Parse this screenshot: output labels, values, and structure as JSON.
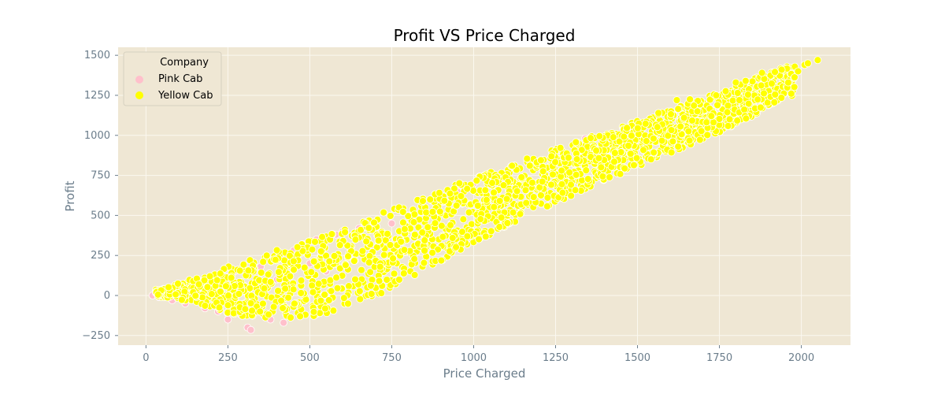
{
  "chart_data": {
    "type": "scatter",
    "title": "Profit VS Price Charged",
    "xlabel": "Price Charged",
    "ylabel": "Profit",
    "xlim": [
      -85,
      2150
    ],
    "ylim": [
      -310,
      1550
    ],
    "xticks": [
      0,
      250,
      500,
      750,
      1000,
      1250,
      1500,
      1750,
      2000
    ],
    "yticks": [
      -250,
      0,
      250,
      500,
      750,
      1000,
      1250,
      1500
    ],
    "grid": true,
    "legend": {
      "title": "Company",
      "placement": "top-left",
      "entries": [
        "Pink Cab",
        "Yellow Cab"
      ]
    },
    "colors": {
      "plot_background": "#efe7d4",
      "grid": "#fbf8f0",
      "pink": "#ffc0cb",
      "yellow": "#ffff00",
      "marker_edge": "#ffffff"
    },
    "series": [
      {
        "name": "Pink Cab",
        "color": "#ffc0cb",
        "x": [
          20,
          40,
          60,
          80,
          100,
          120,
          150,
          180,
          200,
          220,
          240,
          250,
          270,
          290,
          300,
          310,
          320,
          350,
          380,
          400,
          420,
          430,
          450,
          480,
          500,
          520,
          550,
          580,
          600,
          620,
          650,
          700,
          750,
          800,
          850,
          900,
          950,
          1000,
          1100,
          1200,
          1340
        ],
        "y": [
          0,
          -10,
          20,
          -30,
          30,
          -50,
          60,
          -80,
          80,
          -100,
          120,
          -150,
          150,
          -120,
          60,
          -200,
          -215,
          180,
          -150,
          100,
          -170,
          250,
          280,
          320,
          200,
          350,
          150,
          380,
          400,
          250,
          420,
          300,
          450,
          500,
          550,
          620,
          650,
          700,
          750,
          800,
          980
        ]
      },
      {
        "name": "Yellow Cab",
        "color": "#ffff00",
        "bands": [
          {
            "x": 50,
            "lo": -10,
            "hi": 40
          },
          {
            "x": 150,
            "lo": -50,
            "hi": 120
          },
          {
            "x": 250,
            "lo": -110,
            "hi": 180
          },
          {
            "x": 350,
            "lo": -150,
            "hi": 250
          },
          {
            "x": 450,
            "lo": -150,
            "hi": 320
          },
          {
            "x": 550,
            "lo": -120,
            "hi": 390
          },
          {
            "x": 650,
            "lo": -40,
            "hi": 460
          },
          {
            "x": 750,
            "lo": 40,
            "hi": 540
          },
          {
            "x": 850,
            "lo": 150,
            "hi": 620
          },
          {
            "x": 950,
            "lo": 270,
            "hi": 700
          },
          {
            "x": 1050,
            "lo": 380,
            "hi": 770
          },
          {
            "x": 1150,
            "lo": 480,
            "hi": 850
          },
          {
            "x": 1250,
            "lo": 580,
            "hi": 920
          },
          {
            "x": 1350,
            "lo": 670,
            "hi": 990
          },
          {
            "x": 1450,
            "lo": 760,
            "hi": 1060
          },
          {
            "x": 1550,
            "lo": 850,
            "hi": 1130
          },
          {
            "x": 1650,
            "lo": 930,
            "hi": 1200
          },
          {
            "x": 1750,
            "lo": 1020,
            "hi": 1270
          },
          {
            "x": 1850,
            "lo": 1120,
            "hi": 1350
          },
          {
            "x": 1950,
            "lo": 1240,
            "hi": 1430
          }
        ],
        "points": [
          [
            1620,
            1220
          ],
          [
            1660,
            1225
          ],
          [
            1880,
            1390
          ],
          [
            1920,
            1255
          ],
          [
            1940,
            1410
          ],
          [
            1960,
            1330
          ],
          [
            1990,
            1400
          ],
          [
            2010,
            1440
          ],
          [
            2020,
            1450
          ],
          [
            2050,
            1470
          ],
          [
            1800,
            1330
          ],
          [
            1740,
            1250
          ],
          [
            1830,
            1340
          ]
        ]
      }
    ]
  }
}
